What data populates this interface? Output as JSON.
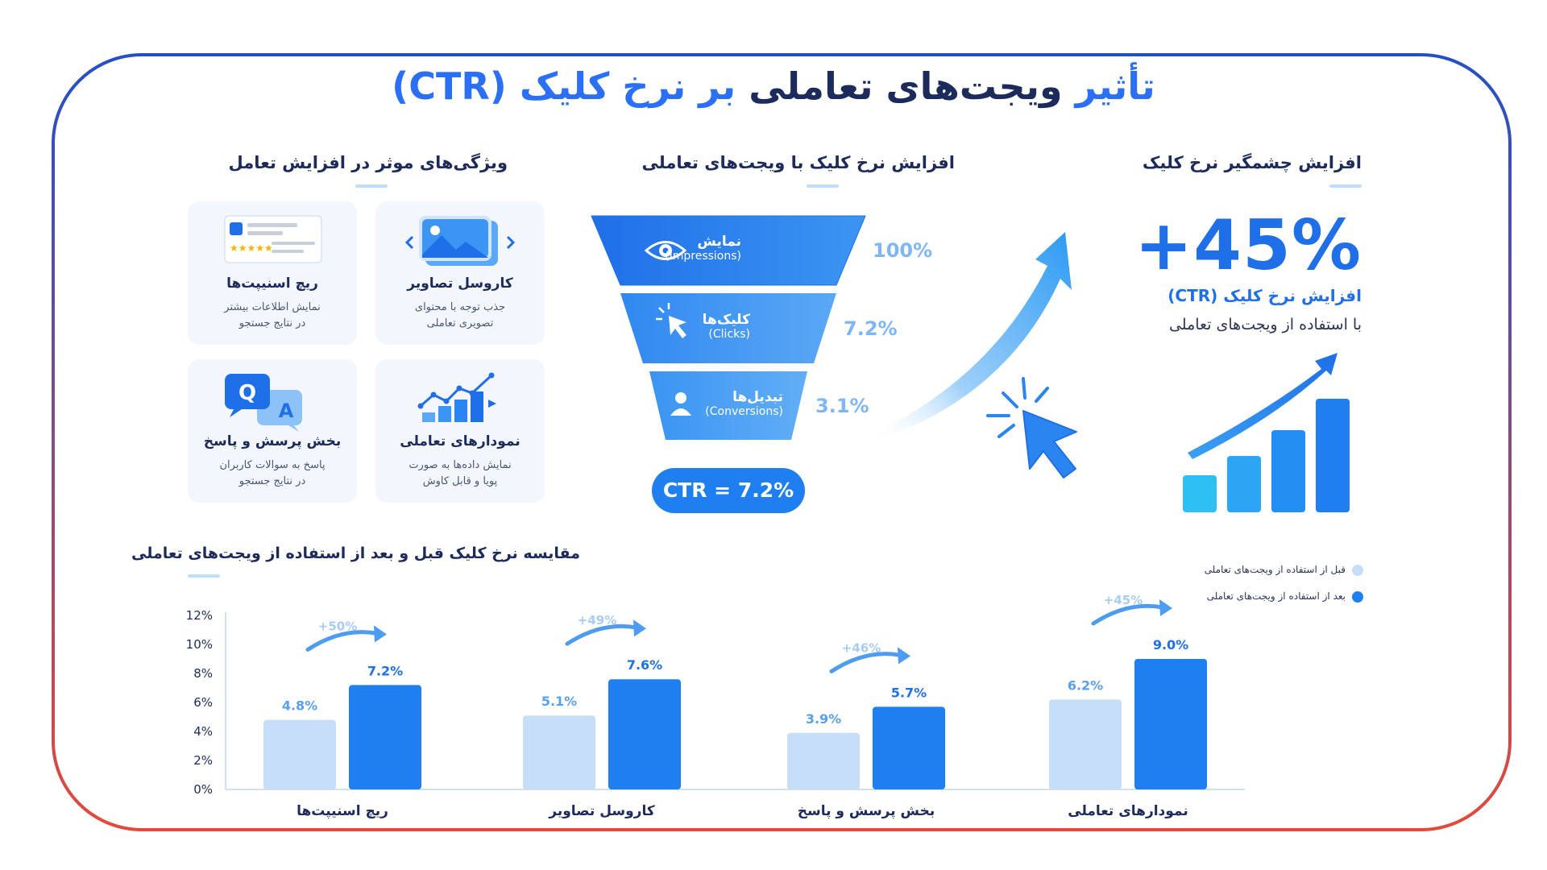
{
  "title": {
    "part1": "تأثیر",
    "part2": "ویجت‌های تعاملی",
    "part3": "بر نرخ کلیک",
    "part4": "(CTR)"
  },
  "features": {
    "title": "ویژگی‌های موثر در افزایش تعامل",
    "items": [
      {
        "title": "کاروسل تصاویر",
        "desc1": "جذب توجه با محتوای",
        "desc2": "تصویری تعاملی",
        "icon": "image-carousel-icon"
      },
      {
        "title": "ریچ اسنیپت‌ها",
        "desc1": "نمایش اطلاعات بیشتر",
        "desc2": "در نتایج جستجو",
        "icon": "rich-snippet-icon"
      },
      {
        "title": "نمودارهای تعاملی",
        "desc1": "نمایش داده‌ها به صورت",
        "desc2": "پویا و قابل کاوش",
        "icon": "chart-icon"
      },
      {
        "title": "بخش پرسش و پاسخ",
        "desc1": "پاسخ به سوالات کاربران",
        "desc2": "در نتایج جستجو",
        "icon": "qa-bubble-icon"
      }
    ],
    "qa_q": "Q",
    "qa_a": "A"
  },
  "funnel": {
    "title": "افزایش نرخ کلیک با ویجت‌های تعاملی",
    "stages": [
      {
        "label": "نمایش",
        "sub": "(Impressions)",
        "pct": "100%",
        "icon": "eye-icon"
      },
      {
        "label": "کلیک‌ها",
        "sub": "(Clicks)",
        "pct": "7.2%",
        "icon": "cursor-click-icon"
      },
      {
        "label": "تبدیل‌ها",
        "sub": "(Conversions)",
        "pct": "3.1%",
        "icon": "user-icon"
      }
    ],
    "ctr": "CTR = 7.2%"
  },
  "highlight": {
    "title": "افزایش چشمگیر نرخ کلیک",
    "value": "+45%",
    "line1": "افزایش نرخ کلیک (CTR)",
    "line2": "با استفاده از ویجت‌های تعاملی"
  },
  "chart_data": {
    "type": "bar",
    "title": "مقایسه نرخ کلیک قبل و بعد از استفاده از ویجت‌های تعاملی",
    "categories": [
      "ریچ اسنیپت‌ها",
      "کاروسل تصاویر",
      "بخش پرسش و پاسخ",
      "نمودارهای تعاملی"
    ],
    "series": [
      {
        "name": "قبل از استفاده از ویجت‌های تعاملی",
        "values": [
          4.8,
          5.1,
          3.9,
          6.2
        ],
        "color": "#c6def8"
      },
      {
        "name": "بعد از استفاده از ویجت‌های تعاملی",
        "values": [
          7.2,
          7.6,
          5.7,
          9.0
        ],
        "color": "#1f7ff0"
      }
    ],
    "value_labels": {
      "before": [
        "4.8%",
        "5.1%",
        "3.9%",
        "6.2%"
      ],
      "after": [
        "7.2%",
        "7.6%",
        "5.7%",
        "9.0%"
      ]
    },
    "increase_labels": [
      "+50%",
      "+49%",
      "+46%",
      "+45%"
    ],
    "ylim": [
      0,
      12
    ],
    "yticks": [
      "0%",
      "2%",
      "4%",
      "6%",
      "8%",
      "10%",
      "12%"
    ],
    "ytick_values": [
      0,
      2,
      4,
      6,
      8,
      10,
      12
    ],
    "legend_position": "top-right",
    "grid": false
  }
}
